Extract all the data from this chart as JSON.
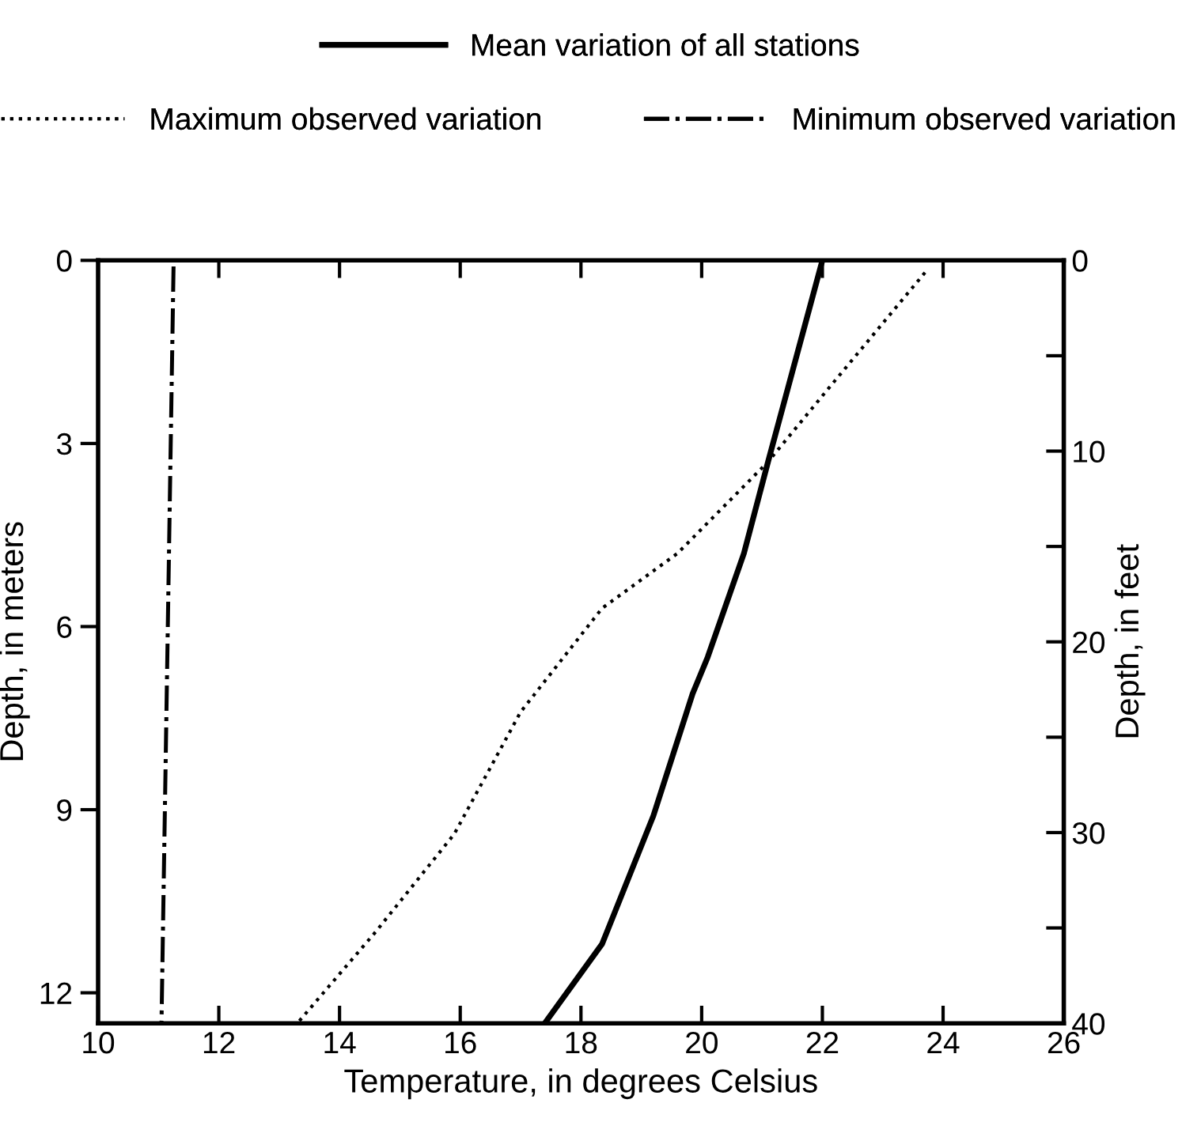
{
  "chart_data": {
    "type": "line",
    "xlabel": "Temperature, in degrees Celsius",
    "ylabel": "Depth, in meters",
    "y2label": "Depth, in feet",
    "series": [
      {
        "name": "Mean variation of all stations",
        "color": "#000000",
        "line_style": "solid",
        "x": [
          22.0,
          21.1,
          20.7,
          20.1,
          19.85,
          19.2,
          18.35,
          17.4
        ],
        "values": [
          0,
          3.3,
          4.8,
          6.5,
          7.1,
          9.1,
          11.2,
          12.5
        ]
      },
      {
        "name": "Maximum observed variation",
        "color": "#000000",
        "line_style": "dotted",
        "x": [
          23.7,
          22.1,
          21.1,
          19.6,
          18.35,
          17.0,
          15.9,
          14.6,
          13.3
        ],
        "values": [
          0.2,
          2.1,
          3.3,
          4.8,
          5.7,
          7.4,
          9.4,
          11.0,
          12.5
        ]
      },
      {
        "name": "Minimum observed variation",
        "color": "#000000",
        "line_style": "dashdot",
        "x": [
          11.25,
          11.05
        ],
        "values": [
          0.1,
          12.5
        ]
      }
    ],
    "xlim": [
      10,
      26
    ],
    "xticks": [
      10,
      12,
      14,
      16,
      18,
      20,
      22,
      24,
      26
    ],
    "ylim": [
      12.5,
      0
    ],
    "yticks": [
      0,
      3,
      6,
      9,
      12
    ],
    "y2lim": [
      40,
      0
    ],
    "y2ticks": [
      0,
      {
        "value": 5,
        "label": null
      },
      10,
      {
        "value": 15,
        "label": null
      },
      20,
      {
        "value": 25,
        "label": null
      },
      30,
      {
        "value": 35,
        "label": null
      },
      40
    ],
    "grid": false,
    "legend": "top",
    "marker": "none"
  }
}
